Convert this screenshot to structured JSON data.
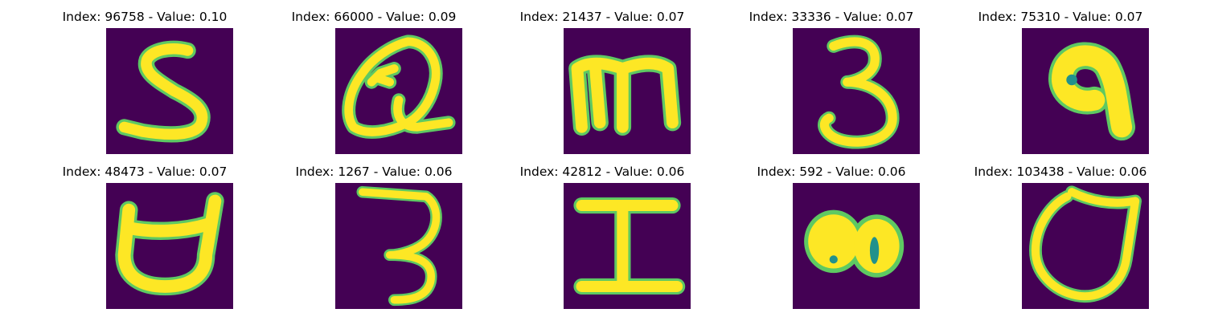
{
  "panels": [
    {
      "title": "Index: 96758 - Value: 0.10",
      "glyph": "S"
    },
    {
      "title": "Index: 66000 - Value: 0.09",
      "glyph": "Q-scribble"
    },
    {
      "title": "Index: 21437 - Value: 0.07",
      "glyph": "m"
    },
    {
      "title": "Index: 33336 - Value: 0.07",
      "glyph": "3"
    },
    {
      "title": "Index: 75310 - Value: 0.07",
      "glyph": "blob-9"
    },
    {
      "title": "Index: 48473 - Value: 0.07",
      "glyph": "U-cup"
    },
    {
      "title": "Index: 1267 - Value: 0.06",
      "glyph": "3-flat"
    },
    {
      "title": "Index: 42812 - Value: 0.06",
      "glyph": "I"
    },
    {
      "title": "Index: 592 - Value: 0.06",
      "glyph": "blob-80"
    },
    {
      "title": "Index: 103438 - Value: 0.06",
      "glyph": "O-loop"
    }
  ],
  "colors": {
    "background": "#440154",
    "stroke": "#fde725",
    "edge": "#5ec962"
  }
}
